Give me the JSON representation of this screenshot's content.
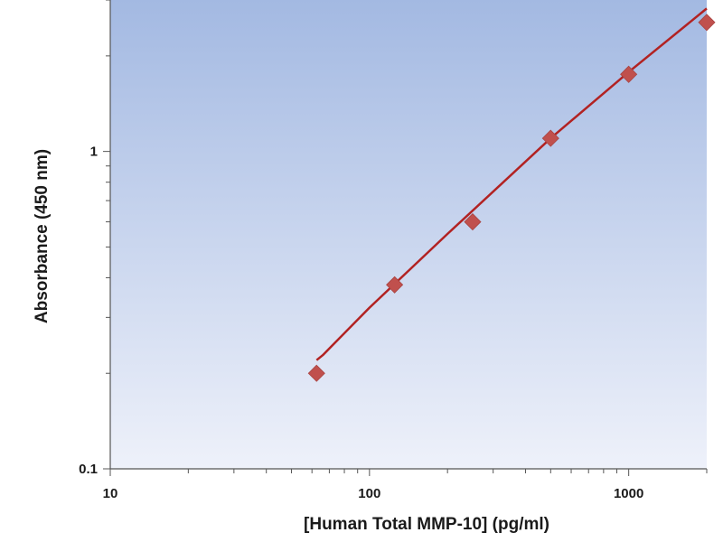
{
  "chart_data": {
    "type": "scatter",
    "title": "",
    "xlabel": "[Human Total MMP-10] (pg/ml)",
    "ylabel": "Absorbance (450 nm)",
    "x_scale": "log",
    "y_scale": "log",
    "xlim": [
      10,
      2000
    ],
    "ylim": [
      0.1,
      3
    ],
    "x_ticks": [
      {
        "value": 10,
        "label": "10"
      },
      {
        "value": 100,
        "label": "100"
      },
      {
        "value": 1000,
        "label": "1000"
      }
    ],
    "y_ticks": [
      {
        "value": 0.1,
        "label": "0.1"
      },
      {
        "value": 1,
        "label": "1"
      }
    ],
    "grid": false,
    "series": [
      {
        "type": "scatter",
        "marker": "diamond",
        "color": "#c0504d",
        "points": [
          {
            "x": 62.5,
            "y": 0.2
          },
          {
            "x": 125,
            "y": 0.38
          },
          {
            "x": 250,
            "y": 0.6
          },
          {
            "x": 500,
            "y": 1.1
          },
          {
            "x": 1000,
            "y": 1.75
          },
          {
            "x": 2000,
            "y": 2.55
          }
        ]
      },
      {
        "type": "line",
        "color": "#b22222",
        "points": [
          {
            "x": 62.5,
            "y": 0.22
          },
          {
            "x": 66,
            "y": 0.228
          },
          {
            "x": 100,
            "y": 0.322
          },
          {
            "x": 200,
            "y": 0.55
          },
          {
            "x": 500,
            "y": 1.1
          },
          {
            "x": 1000,
            "y": 1.78
          },
          {
            "x": 2000,
            "y": 2.82
          }
        ]
      }
    ],
    "background_gradient": [
      "#a3b9e2",
      "#eef1fa"
    ]
  }
}
